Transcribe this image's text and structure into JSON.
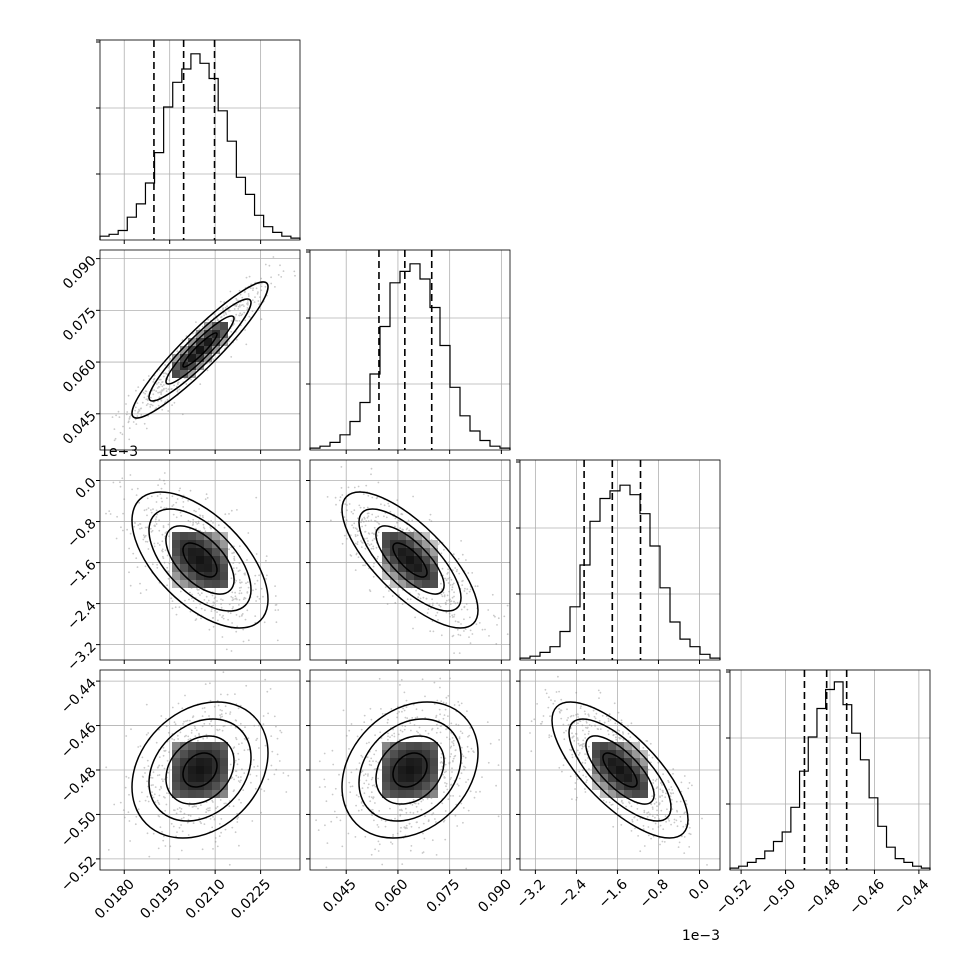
{
  "chart_data": {
    "type": "corner",
    "grid": true,
    "colors": {
      "line": "#000000",
      "grid": "#b0b0b0",
      "points": "#888888"
    },
    "parameters": [
      {
        "range": [
          0.0172,
          0.0238
        ],
        "ticks": [
          0.018,
          0.0195,
          0.021,
          0.0225
        ],
        "tick_labels": [
          "0.0180",
          "0.0195",
          "0.0210",
          "0.0225"
        ],
        "offset_text": "",
        "quantiles": [
          0.01898,
          0.01996,
          0.02098
        ],
        "hist": [
          0.02,
          0.03,
          0.05,
          0.12,
          0.19,
          0.3,
          0.46,
          0.7,
          0.83,
          0.9,
          0.98,
          0.93,
          0.85,
          0.68,
          0.52,
          0.33,
          0.24,
          0.13,
          0.07,
          0.04,
          0.02,
          0.01
        ]
      },
      {
        "range": [
          0.0345,
          0.0925
        ],
        "ticks": [
          0.045,
          0.06,
          0.075,
          0.09
        ],
        "tick_labels": [
          "0.045",
          "0.060",
          "0.075",
          "0.090"
        ],
        "offset_text": "",
        "quantiles": [
          0.0545,
          0.062,
          0.0698
        ],
        "hist": [
          0.01,
          0.02,
          0.04,
          0.08,
          0.15,
          0.25,
          0.4,
          0.65,
          0.88,
          0.94,
          0.98,
          0.9,
          0.75,
          0.55,
          0.33,
          0.18,
          0.1,
          0.05,
          0.02,
          0.01
        ]
      },
      {
        "range": [
          -3.5,
          0.4
        ],
        "ticks": [
          -3.2,
          -2.4,
          -1.6,
          -0.8,
          0.0
        ],
        "tick_labels": [
          "−3.2",
          "−2.4",
          "−1.6",
          "−0.8",
          "0.0"
        ],
        "offset_text": "1e−3",
        "quantiles": [
          -2.25,
          -1.7,
          -1.15
        ],
        "hist": [
          0.01,
          0.02,
          0.04,
          0.07,
          0.15,
          0.28,
          0.5,
          0.73,
          0.85,
          0.89,
          0.92,
          0.87,
          0.77,
          0.6,
          0.38,
          0.2,
          0.11,
          0.07,
          0.03,
          0.01
        ]
      },
      {
        "range": [
          -0.525,
          -0.435
        ],
        "ticks": [
          -0.52,
          -0.5,
          -0.48,
          -0.46,
          -0.44
        ],
        "tick_labels": [
          "−0.52",
          "−0.50",
          "−0.48",
          "−0.46",
          "−0.44"
        ],
        "offset_text": "",
        "quantiles": [
          -0.4915,
          -0.4815,
          -0.4725
        ],
        "hist": [
          0.01,
          0.02,
          0.04,
          0.06,
          0.1,
          0.15,
          0.2,
          0.33,
          0.52,
          0.7,
          0.85,
          0.95,
          0.99,
          0.87,
          0.72,
          0.58,
          0.38,
          0.23,
          0.12,
          0.06,
          0.04,
          0.02,
          0.01
        ]
      }
    ],
    "correlations": [
      {
        "row": 1,
        "col": 0,
        "rho": 0.93
      },
      {
        "row": 2,
        "col": 0,
        "rho": -0.58
      },
      {
        "row": 2,
        "col": 1,
        "rho": -0.74
      },
      {
        "row": 3,
        "col": 0,
        "rho": 0.25
      },
      {
        "row": 3,
        "col": 1,
        "rho": 0.25
      },
      {
        "row": 3,
        "col": 2,
        "rho": -0.73
      }
    ],
    "contour_levels_sigma": [
      0.5,
      1.0,
      1.5,
      2.0
    ]
  }
}
